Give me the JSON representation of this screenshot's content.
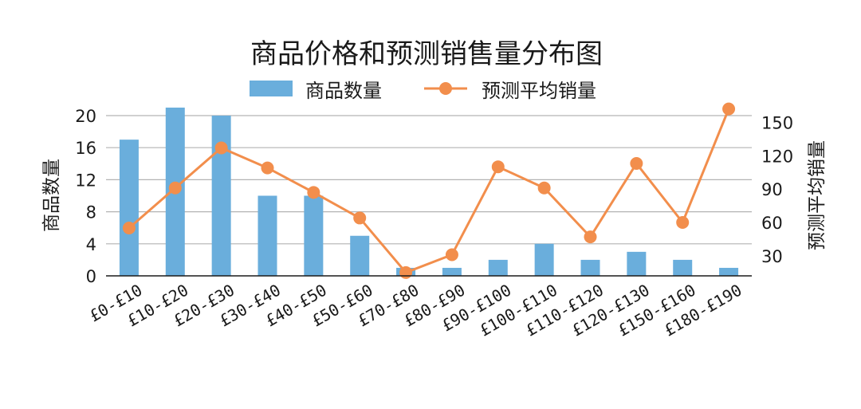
{
  "chart_data": {
    "type": "bar",
    "title": "商品价格和预测销售量分布图",
    "categories": [
      "£0-£10",
      "£10-£20",
      "£20-£30",
      "£30-£40",
      "£40-£50",
      "£50-£60",
      "£70-£80",
      "£80-£90",
      "£90-£100",
      "£100-£110",
      "£110-£120",
      "£120-£130",
      "£150-£160",
      "£180-£190"
    ],
    "series": [
      {
        "name": "商品数量",
        "type": "bar",
        "axis": "left",
        "color": "#6aaedc",
        "values": [
          17,
          21,
          20,
          10,
          10,
          5,
          1,
          1,
          2,
          4,
          2,
          3,
          2,
          1
        ]
      },
      {
        "name": "预测平均销量",
        "type": "line",
        "axis": "right",
        "color": "#f28e4c",
        "marker": "circle",
        "values": [
          55,
          91,
          127,
          109,
          87,
          64,
          15,
          31,
          110,
          91,
          47,
          113,
          60,
          162
        ]
      }
    ],
    "ylabel": "商品数量",
    "ylabel_right": "预测平均销量",
    "ylim": [
      0,
      20
    ],
    "ylim_right": [
      12,
      156
    ],
    "yticks": [
      0,
      4,
      8,
      12,
      16,
      20
    ],
    "yticks_right": [
      30,
      60,
      90,
      120,
      150
    ],
    "grid": "horizontal",
    "legend_position": "top-center"
  }
}
